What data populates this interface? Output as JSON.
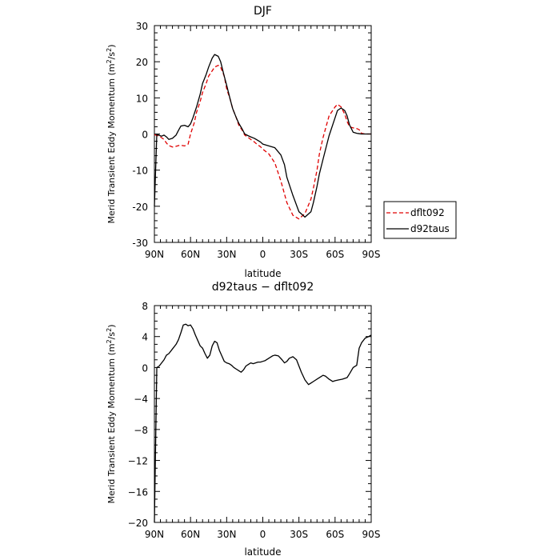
{
  "chart_data": [
    {
      "type": "line",
      "title": "DJF",
      "xlabel": "latitude",
      "ylabel": "Merid Transient Eddy Momentum (m",
      "ylabel_unit_exp1": "2",
      "ylabel_unit_mid": "/s",
      "ylabel_unit_exp2": "2",
      "ylabel_unit_end": ")",
      "xlim": [
        90,
        -90
      ],
      "ylim": [
        -30,
        30
      ],
      "x_ticks": [
        90,
        60,
        30,
        0,
        -30,
        -60,
        -90
      ],
      "x_tick_labels": [
        "90N",
        "60N",
        "30N",
        "0",
        "30S",
        "60S",
        "90S"
      ],
      "y_ticks": [
        -30,
        -20,
        -10,
        0,
        10,
        20,
        30
      ],
      "y_tick_labels": [
        "-30",
        "-20",
        "-10",
        "0",
        "10",
        "20",
        "30"
      ],
      "legend": "right",
      "series": [
        {
          "name": "dflt092",
          "color": "#e00000",
          "dash": "dashed",
          "x": [
            90,
            87,
            85,
            82,
            80,
            78,
            75,
            72,
            70,
            68,
            65,
            62,
            60,
            57,
            55,
            52,
            50,
            47,
            45,
            42,
            40,
            37,
            35,
            32,
            30,
            27,
            25,
            22,
            20,
            17,
            15,
            12,
            10,
            7,
            5,
            2,
            0,
            -5,
            -10,
            -15,
            -20,
            -25,
            -30,
            -35,
            -40,
            -42,
            -45,
            -47,
            -50,
            -55,
            -60,
            -62,
            -65,
            -68,
            -70,
            -72,
            -75,
            -78,
            -80,
            -82,
            -85,
            -88,
            -90
          ],
          "y": [
            -0.2,
            -0.5,
            -0.8,
            -1.5,
            -2.5,
            -3.2,
            -3.6,
            -3.4,
            -3.2,
            -3.1,
            -3.3,
            -2.8,
            0,
            3,
            6,
            9,
            11.5,
            14,
            16,
            17.5,
            18.5,
            19,
            18.5,
            16,
            12.5,
            9.5,
            7,
            4.5,
            2.5,
            1,
            -0.3,
            -1,
            -1.5,
            -2.2,
            -2.8,
            -3.5,
            -4.2,
            -5.5,
            -8,
            -13,
            -19,
            -22.5,
            -23.5,
            -22,
            -18,
            -15,
            -10,
            -5.5,
            -1,
            5,
            7.5,
            8.2,
            7.5,
            5.5,
            3.5,
            2,
            1.7,
            1.5,
            1.2,
            0.2,
            0,
            0,
            0
          ]
        },
        {
          "name": "d92taus",
          "color": "#000000",
          "dash": "solid",
          "x": [
            90,
            88,
            86,
            84,
            82,
            80,
            78,
            75,
            72,
            70,
            68,
            65,
            62,
            60,
            58,
            55,
            52,
            50,
            47,
            45,
            42,
            40,
            37,
            35,
            32,
            30,
            27,
            25,
            22,
            20,
            17,
            15,
            12,
            10,
            7,
            5,
            2,
            0,
            -5,
            -10,
            -15,
            -18,
            -20,
            -25,
            -30,
            -35,
            -40,
            -42,
            -45,
            -47,
            -50,
            -55,
            -60,
            -62,
            -65,
            -68,
            -70,
            -72,
            -75,
            -78,
            -80,
            -82,
            -85,
            -88,
            -90
          ],
          "y": [
            -20,
            0,
            -0.4,
            -0.6,
            -0.3,
            -0.8,
            -1.5,
            -1.2,
            -0.3,
            1,
            2.2,
            2.4,
            2,
            2.8,
            4.5,
            7.5,
            11,
            14,
            16.5,
            18.5,
            21,
            22,
            21.5,
            20,
            16,
            13.5,
            9.5,
            7,
            4.5,
            3,
            1.3,
            0,
            -0.5,
            -0.8,
            -1.2,
            -1.6,
            -2.2,
            -2.8,
            -3.3,
            -3.8,
            -5.8,
            -8.5,
            -12,
            -17,
            -21.5,
            -23,
            -21.5,
            -19,
            -14.5,
            -11,
            -7,
            -0.5,
            4.5,
            6.5,
            7.2,
            6.5,
            5,
            2.5,
            0.5,
            0.2,
            0.1,
            0,
            0,
            0,
            0
          ]
        }
      ]
    },
    {
      "type": "line",
      "title": "d92taus − dflt092",
      "xlabel": "latitude",
      "ylabel": "Merid Transient Eddy Momentum (m",
      "ylabel_unit_exp1": "2",
      "ylabel_unit_mid": "/s",
      "ylabel_unit_exp2": "2",
      "ylabel_unit_end": ")",
      "xlim": [
        90,
        -90
      ],
      "ylim": [
        -20,
        8
      ],
      "x_ticks": [
        90,
        60,
        30,
        0,
        -30,
        -60,
        -90
      ],
      "x_tick_labels": [
        "90N",
        "60N",
        "30N",
        "0",
        "30S",
        "60S",
        "90S"
      ],
      "y_ticks": [
        -20,
        -16,
        -12,
        -8,
        -4,
        0,
        4,
        8
      ],
      "y_tick_labels": [
        "−20",
        "−16",
        "−12",
        "−8",
        "−4",
        "0",
        "4",
        "8"
      ],
      "series": [
        {
          "color": "#000000",
          "dash": "solid",
          "x": [
            90,
            88,
            86,
            84,
            82,
            80,
            78,
            75,
            72,
            70,
            68,
            66,
            64,
            62,
            60,
            58,
            56,
            54,
            52,
            50,
            48,
            46,
            44,
            42,
            40,
            38,
            36,
            34,
            32,
            30,
            28,
            26,
            24,
            22,
            20,
            18,
            16,
            14,
            12,
            10,
            8,
            6,
            4,
            2,
            0,
            -2,
            -5,
            -8,
            -10,
            -13,
            -16,
            -18,
            -20,
            -22,
            -25,
            -28,
            -30,
            -32,
            -35,
            -38,
            -40,
            -43,
            -46,
            -48,
            -50,
            -52,
            -55,
            -58,
            -60,
            -63,
            -66,
            -68,
            -70,
            -72,
            -75,
            -78,
            -80,
            -82,
            -85,
            -88,
            -90
          ],
          "y": [
            -20,
            0,
            0.2,
            0.6,
            1,
            1.6,
            1.8,
            2.4,
            3,
            3.6,
            4.5,
            5.5,
            5.6,
            5.4,
            5.5,
            5,
            4.2,
            3.5,
            2.8,
            2.5,
            1.8,
            1.2,
            1.6,
            2.8,
            3.4,
            3.2,
            2.2,
            1.5,
            0.8,
            0.6,
            0.5,
            0.3,
            0,
            -0.2,
            -0.4,
            -0.6,
            -0.3,
            0.2,
            0.4,
            0.6,
            0.5,
            0.6,
            0.7,
            0.7,
            0.8,
            0.9,
            1.2,
            1.5,
            1.6,
            1.5,
            1,
            0.6,
            0.8,
            1.2,
            1.4,
            1,
            0.2,
            -0.6,
            -1.6,
            -2.2,
            -2,
            -1.7,
            -1.4,
            -1.2,
            -1,
            -1.1,
            -1.5,
            -1.8,
            -1.7,
            -1.6,
            -1.5,
            -1.4,
            -1.3,
            -0.8,
            0,
            0.3,
            2.5,
            3.2,
            3.8,
            4,
            4.2
          ]
        }
      ]
    }
  ]
}
